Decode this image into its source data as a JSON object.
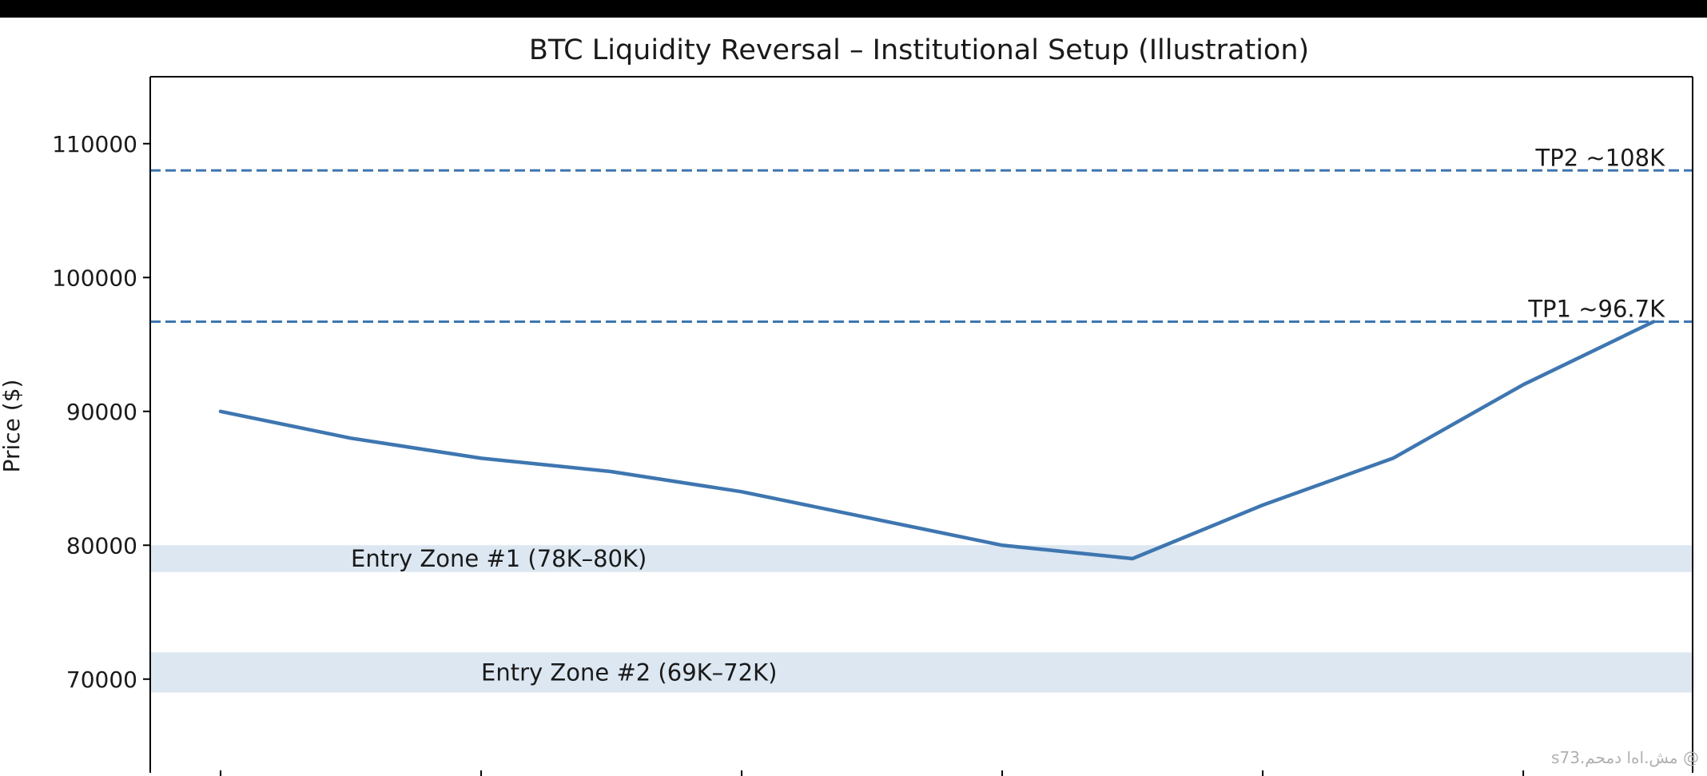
{
  "chart_data": {
    "type": "line",
    "title": "BTC Liquidity Reversal – Institutional Setup (Illustration)",
    "xlabel": "",
    "ylabel": "Price ($)",
    "ylim": [
      63000,
      115000
    ],
    "xlim": [
      -0.27,
      5.65
    ],
    "grid": false,
    "x_tick_labels": [],
    "y_ticks": [
      70000,
      80000,
      90000,
      100000,
      110000
    ],
    "y_tick_labels": [
      "70000",
      "80000",
      "90000",
      "100000",
      "110000"
    ],
    "series": [
      {
        "x": [
          0,
          0.5,
          1,
          1.5,
          2,
          2.5,
          3,
          3.5,
          4,
          4.5,
          5,
          5.5
        ],
        "values": [
          90000,
          88000,
          86500,
          85500,
          84000,
          82000,
          80000,
          79000,
          83000,
          86500,
          92000,
          96700
        ],
        "color": "#3e76b0"
      }
    ],
    "hlines": [
      {
        "y": 108000,
        "label": "TP2 ~108K",
        "color": "#3e76b0",
        "style": "dashed"
      },
      {
        "y": 96700,
        "label": "TP1 ~96.7K",
        "color": "#3e76b0",
        "style": "dashed"
      }
    ],
    "zones": [
      {
        "y0": 78000,
        "y1": 80000,
        "label": "Entry Zone #1 (78K–80K)",
        "label_x": 0.5,
        "label_y": 79000,
        "color": "#dce7f2"
      },
      {
        "y0": 69000,
        "y1": 72000,
        "label": "Entry Zone #2 (69K–72K)",
        "label_x": 1.0,
        "label_y": 70500,
        "color": "#dce7f2"
      }
    ],
    "x_ticks": [
      0,
      1,
      2,
      3,
      4,
      5
    ]
  },
  "watermark": "s73.مش.اه‌ا دمحم @"
}
